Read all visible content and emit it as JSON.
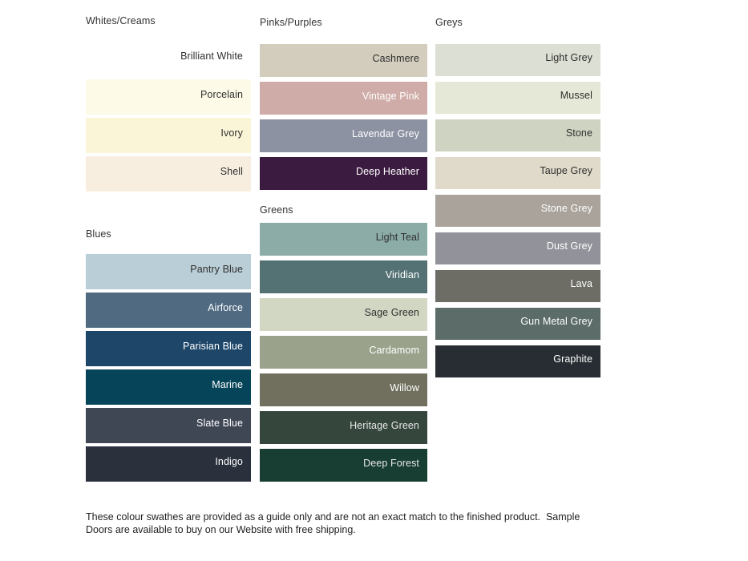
{
  "columns": [
    {
      "sections": [
        {
          "title": "Whites/Creams",
          "swatches": [
            {
              "name": "Brilliant White",
              "color": "#FFFFFF",
              "text_color": "#2F2F2F"
            },
            {
              "name": "Porcelain",
              "color": "#FDFBE7",
              "text_color": "#2F2F2F"
            },
            {
              "name": "Ivory",
              "color": "#FBF5D7",
              "text_color": "#2F2F2F"
            },
            {
              "name": "Shell",
              "color": "#F7EEE0",
              "text_color": "#2F2F2F"
            }
          ]
        },
        {
          "title": "Blues",
          "swatches": [
            {
              "name": "Pantry Blue",
              "color": "#B9CED6",
              "text_color": "#2F2F2F"
            },
            {
              "name": "Airforce",
              "color": "#4F6A81",
              "text_color": "#FFFFFF"
            },
            {
              "name": "Parisian Blue",
              "color": "#1E4669",
              "text_color": "#FFFFFF"
            },
            {
              "name": "Marine",
              "color": "#054459",
              "text_color": "#FFFFFF"
            },
            {
              "name": "Slate Blue",
              "color": "#3F4654",
              "text_color": "#FFFFFF"
            },
            {
              "name": "Indigo",
              "color": "#2A313D",
              "text_color": "#FFFFFF"
            }
          ]
        }
      ]
    },
    {
      "sections": [
        {
          "title": "Pinks/Purples",
          "swatches": [
            {
              "name": "Cashmere",
              "color": "#D2CDBD",
              "text_color": "#2F2F2F"
            },
            {
              "name": "Vintage Pink",
              "color": "#D0ACA8",
              "text_color": "#FFFFFF"
            },
            {
              "name": "Lavendar Grey",
              "color": "#8D92A3",
              "text_color": "#FFFFFF"
            },
            {
              "name": "Deep Heather",
              "color": "#3B1B3F",
              "text_color": "#FFFFFF"
            }
          ]
        },
        {
          "title": "Greens",
          "swatches": [
            {
              "name": "Light Teal",
              "color": "#8CACA8",
              "text_color": "#2F2F2F"
            },
            {
              "name": "Viridian",
              "color": "#547173",
              "text_color": "#FFFFFF"
            },
            {
              "name": "Sage Green",
              "color": "#D1D7C3",
              "text_color": "#2F2F2F"
            },
            {
              "name": "Cardamom",
              "color": "#9AA28B",
              "text_color": "#FFFFFF"
            },
            {
              "name": "Willow",
              "color": "#71705F",
              "text_color": "#FFFFFF"
            },
            {
              "name": "Heritage Green",
              "color": "#35463D",
              "text_color": "#E8E8E8"
            },
            {
              "name": "Deep Forest",
              "color": "#183D33",
              "text_color": "#E8E8E8"
            }
          ]
        }
      ]
    },
    {
      "sections": [
        {
          "title": "Greys",
          "swatches": [
            {
              "name": "Light Grey",
              "color": "#DCDFD3",
              "text_color": "#2F2F2F"
            },
            {
              "name": "Mussel",
              "color": "#E5E8D7",
              "text_color": "#2F2F2F"
            },
            {
              "name": "Stone",
              "color": "#CFD3C1",
              "text_color": "#2F2F2F"
            },
            {
              "name": "Taupe Grey",
              "color": "#E0DACA",
              "text_color": "#2F2F2F"
            },
            {
              "name": "Stone Grey",
              "color": "#A9A39B",
              "text_color": "#FFFFFF"
            },
            {
              "name": "Dust Grey",
              "color": "#92939A",
              "text_color": "#FFFFFF"
            },
            {
              "name": "Lava",
              "color": "#6D6D65",
              "text_color": "#FFFFFF"
            },
            {
              "name": "Gun Metal Grey",
              "color": "#5B6C69",
              "text_color": "#FFFFFF"
            },
            {
              "name": "Graphite",
              "color": "#272D32",
              "text_color": "#FFFFFF"
            }
          ]
        }
      ]
    }
  ],
  "footer": {
    "line1": "These colour swathes are provided as a guide only and are not an exact match to the finished product.  Sample",
    "line2": "Doors are available to buy on our Website with free shipping."
  }
}
